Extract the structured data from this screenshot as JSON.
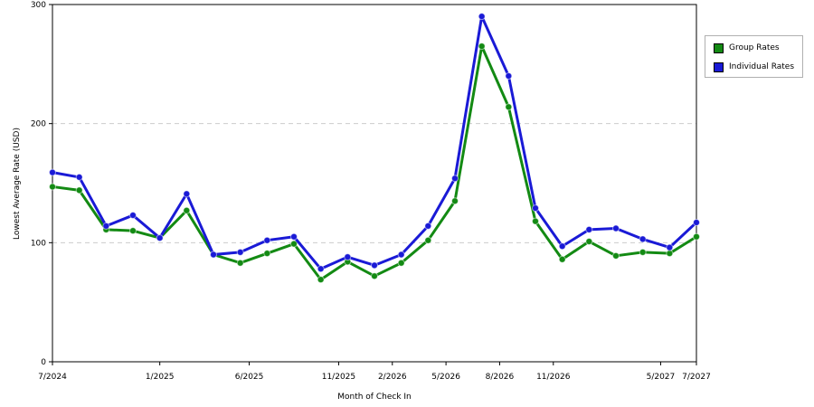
{
  "chart_data": {
    "type": "line",
    "xlabel": "Month of Check In",
    "ylabel": "Lowest Average Rate (USD)",
    "ylim": [
      0,
      300
    ],
    "yticks": [
      0,
      100,
      200,
      300
    ],
    "grid": true,
    "legend_position": "right",
    "x_index_range": [
      0,
      36
    ],
    "x_tick_labels": [
      {
        "index": 0,
        "label": "7/2024"
      },
      {
        "index": 6,
        "label": "1/2025"
      },
      {
        "index": 11,
        "label": "6/2025"
      },
      {
        "index": 16,
        "label": "11/2025"
      },
      {
        "index": 19,
        "label": "2/2026"
      },
      {
        "index": 22,
        "label": "5/2026"
      },
      {
        "index": 25,
        "label": "8/2026"
      },
      {
        "index": 28,
        "label": "11/2026"
      },
      {
        "index": 34,
        "label": "5/2027"
      },
      {
        "index": 36,
        "label": "7/2027"
      }
    ],
    "x": [
      0,
      1.5,
      3,
      4.5,
      6,
      7.5,
      9,
      10.5,
      12,
      13.5,
      15,
      16.5,
      18,
      19.5,
      21,
      22.5,
      24,
      25.5,
      27,
      28.5,
      30,
      31.5,
      33,
      34.5,
      36
    ],
    "series": [
      {
        "name": "Group Rates",
        "color": "#138a13",
        "values": [
          147,
          144,
          111,
          110,
          104,
          127,
          90,
          83,
          91,
          99,
          69,
          84,
          72,
          83,
          102,
          135,
          265,
          214,
          118,
          86,
          101,
          89,
          92,
          91,
          105
        ]
      },
      {
        "name": "Individual Rates",
        "color": "#1a1ad6",
        "values": [
          159,
          155,
          114,
          123,
          104,
          141,
          90,
          92,
          102,
          105,
          78,
          88,
          81,
          90,
          114,
          154,
          290,
          240,
          129,
          97,
          111,
          112,
          103,
          96,
          117
        ]
      }
    ]
  }
}
